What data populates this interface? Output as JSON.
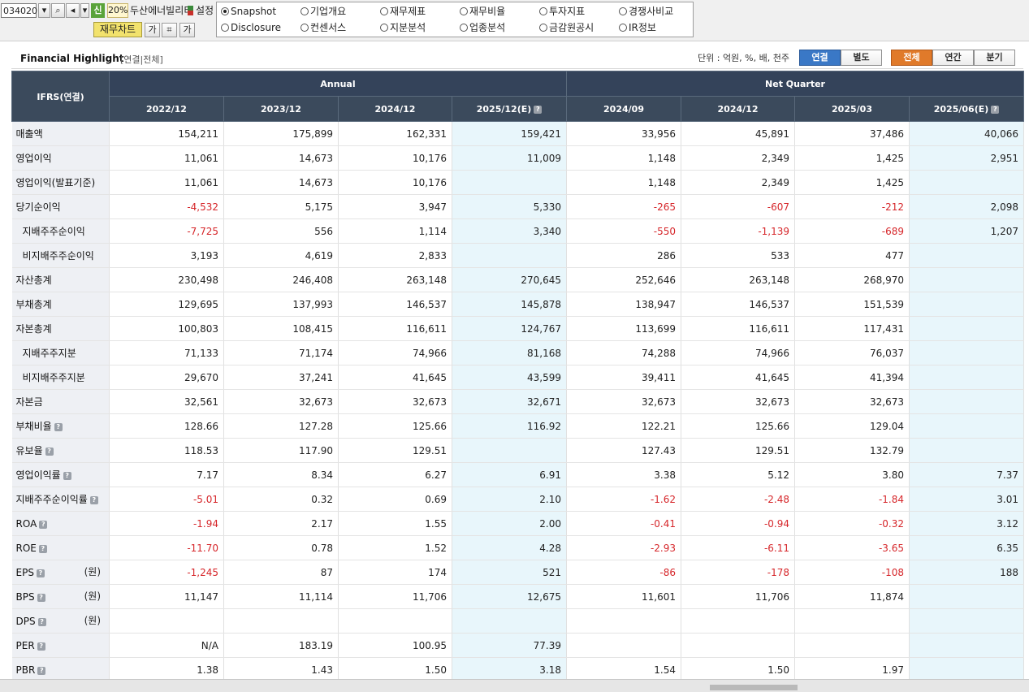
{
  "toolbar": {
    "code": "034020",
    "new_badge": "신",
    "pct": "20%",
    "company": "두산에너빌리티",
    "setting": "설정",
    "chart_button": "재무차트",
    "font_btn": "가",
    "font_btn2": "가"
  },
  "menu": {
    "row1": [
      "Snapshot",
      "기업개요",
      "재무제표",
      "재무비율",
      "투자지표",
      "경쟁사비교"
    ],
    "row2": [
      "Disclosure",
      "컨센서스",
      "지분분석",
      "업종분석",
      "금감원공시",
      "IR정보"
    ],
    "selected": "Snapshot"
  },
  "header": {
    "title": "Financial Highlight",
    "subtitle": "[연결|전체]",
    "unit": "단위 : 억원, %, 배, 천주",
    "seg1": [
      "연결",
      "별도"
    ],
    "seg2": [
      "전체",
      "연간",
      "분기"
    ]
  },
  "table": {
    "corner": "IFRS(연결)",
    "group_annual": "Annual",
    "group_quarter": "Net Quarter",
    "columns": [
      "2022/12",
      "2023/12",
      "2024/12",
      "2025/12(E)",
      "2024/09",
      "2024/12",
      "2025/03",
      "2025/06(E)"
    ],
    "rows": [
      {
        "label": "매출액",
        "values": [
          "154,211",
          "175,899",
          "162,331",
          "159,421",
          "33,956",
          "45,891",
          "37,486",
          "40,066"
        ]
      },
      {
        "label": "영업이익",
        "values": [
          "11,061",
          "14,673",
          "10,176",
          "11,009",
          "1,148",
          "2,349",
          "1,425",
          "2,951"
        ]
      },
      {
        "label": "영업이익(발표기준)",
        "values": [
          "11,061",
          "14,673",
          "10,176",
          "",
          "1,148",
          "2,349",
          "1,425",
          ""
        ]
      },
      {
        "label": "당기순이익",
        "values": [
          "-4,532",
          "5,175",
          "3,947",
          "5,330",
          "-265",
          "-607",
          "-212",
          "2,098"
        ]
      },
      {
        "label": "지배주주순이익",
        "indent": true,
        "values": [
          "-7,725",
          "556",
          "1,114",
          "3,340",
          "-550",
          "-1,139",
          "-689",
          "1,207"
        ]
      },
      {
        "label": "비지배주주순이익",
        "indent": true,
        "values": [
          "3,193",
          "4,619",
          "2,833",
          "",
          "286",
          "533",
          "477",
          ""
        ]
      },
      {
        "label": "자산총계",
        "values": [
          "230,498",
          "246,408",
          "263,148",
          "270,645",
          "252,646",
          "263,148",
          "268,970",
          ""
        ]
      },
      {
        "label": "부채총계",
        "values": [
          "129,695",
          "137,993",
          "146,537",
          "145,878",
          "138,947",
          "146,537",
          "151,539",
          ""
        ]
      },
      {
        "label": "자본총계",
        "values": [
          "100,803",
          "108,415",
          "116,611",
          "124,767",
          "113,699",
          "116,611",
          "117,431",
          ""
        ]
      },
      {
        "label": "지배주주지분",
        "indent": true,
        "values": [
          "71,133",
          "71,174",
          "74,966",
          "81,168",
          "74,288",
          "74,966",
          "76,037",
          ""
        ]
      },
      {
        "label": "비지배주주지분",
        "indent": true,
        "values": [
          "29,670",
          "37,241",
          "41,645",
          "43,599",
          "39,411",
          "41,645",
          "41,394",
          ""
        ]
      },
      {
        "label": "자본금",
        "values": [
          "32,561",
          "32,673",
          "32,673",
          "32,671",
          "32,673",
          "32,673",
          "32,673",
          ""
        ]
      },
      {
        "label": "부채비율",
        "help": true,
        "values": [
          "128.66",
          "127.28",
          "125.66",
          "116.92",
          "122.21",
          "125.66",
          "129.04",
          ""
        ]
      },
      {
        "label": "유보율",
        "help": true,
        "values": [
          "118.53",
          "117.90",
          "129.51",
          "",
          "127.43",
          "129.51",
          "132.79",
          ""
        ]
      },
      {
        "label": "영업이익률",
        "help": true,
        "values": [
          "7.17",
          "8.34",
          "6.27",
          "6.91",
          "3.38",
          "5.12",
          "3.80",
          "7.37"
        ]
      },
      {
        "label": "지배주주순이익률",
        "help": true,
        "values": [
          "-5.01",
          "0.32",
          "0.69",
          "2.10",
          "-1.62",
          "-2.48",
          "-1.84",
          "3.01"
        ]
      },
      {
        "label": "ROA",
        "help": true,
        "values": [
          "-1.94",
          "2.17",
          "1.55",
          "2.00",
          "-0.41",
          "-0.94",
          "-0.32",
          "3.12"
        ]
      },
      {
        "label": "ROE",
        "help": true,
        "values": [
          "-11.70",
          "0.78",
          "1.52",
          "4.28",
          "-2.93",
          "-6.11",
          "-3.65",
          "6.35"
        ]
      },
      {
        "label": "EPS",
        "help": true,
        "unit": "(원)",
        "values": [
          "-1,245",
          "87",
          "174",
          "521",
          "-86",
          "-178",
          "-108",
          "188"
        ]
      },
      {
        "label": "BPS",
        "help": true,
        "unit": "(원)",
        "values": [
          "11,147",
          "11,114",
          "11,706",
          "12,675",
          "11,601",
          "11,706",
          "11,874",
          ""
        ]
      },
      {
        "label": "DPS",
        "help": true,
        "unit": "(원)",
        "values": [
          "",
          "",
          "",
          "",
          "",
          "",
          "",
          ""
        ]
      },
      {
        "label": "PER",
        "help": true,
        "values": [
          "N/A",
          "183.19",
          "100.95",
          "77.39",
          "",
          "",
          "",
          ""
        ]
      },
      {
        "label": "PBR",
        "help": true,
        "values": [
          "1.38",
          "1.43",
          "1.50",
          "3.18",
          "1.54",
          "1.50",
          "1.97",
          ""
        ]
      }
    ]
  }
}
